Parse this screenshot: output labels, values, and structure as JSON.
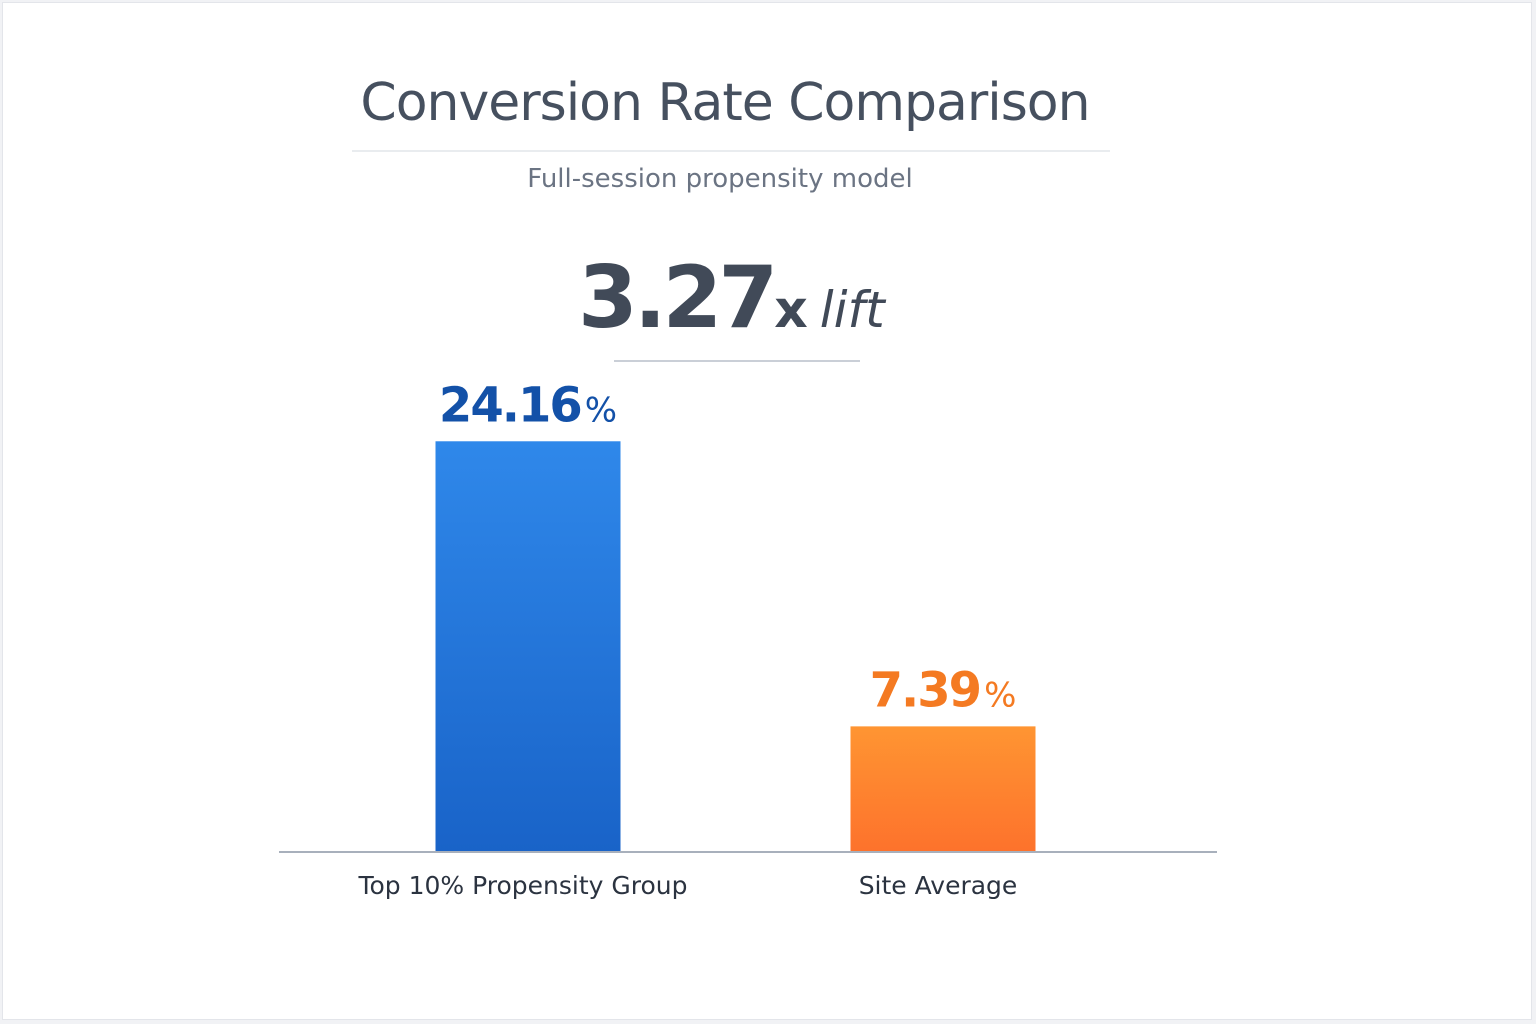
{
  "chart_data": {
    "type": "bar",
    "title": "Conversion Rate Comparison",
    "subtitle": "Full-session propensity model",
    "annotation": {
      "value": "3.27",
      "suffix": "x",
      "word": "lift"
    },
    "categories": [
      "Top 10% Propensity Group",
      "Site Average"
    ],
    "values": [
      24.16,
      7.39
    ],
    "value_labels": [
      "24.16",
      "7.39"
    ],
    "unit": "%",
    "colors": [
      "#1f6fd6",
      "#fb7f2a"
    ],
    "label_colors": [
      "#1351a8",
      "#f47a22"
    ],
    "ylim": [
      0,
      30
    ],
    "grid": false,
    "legend": "none"
  }
}
